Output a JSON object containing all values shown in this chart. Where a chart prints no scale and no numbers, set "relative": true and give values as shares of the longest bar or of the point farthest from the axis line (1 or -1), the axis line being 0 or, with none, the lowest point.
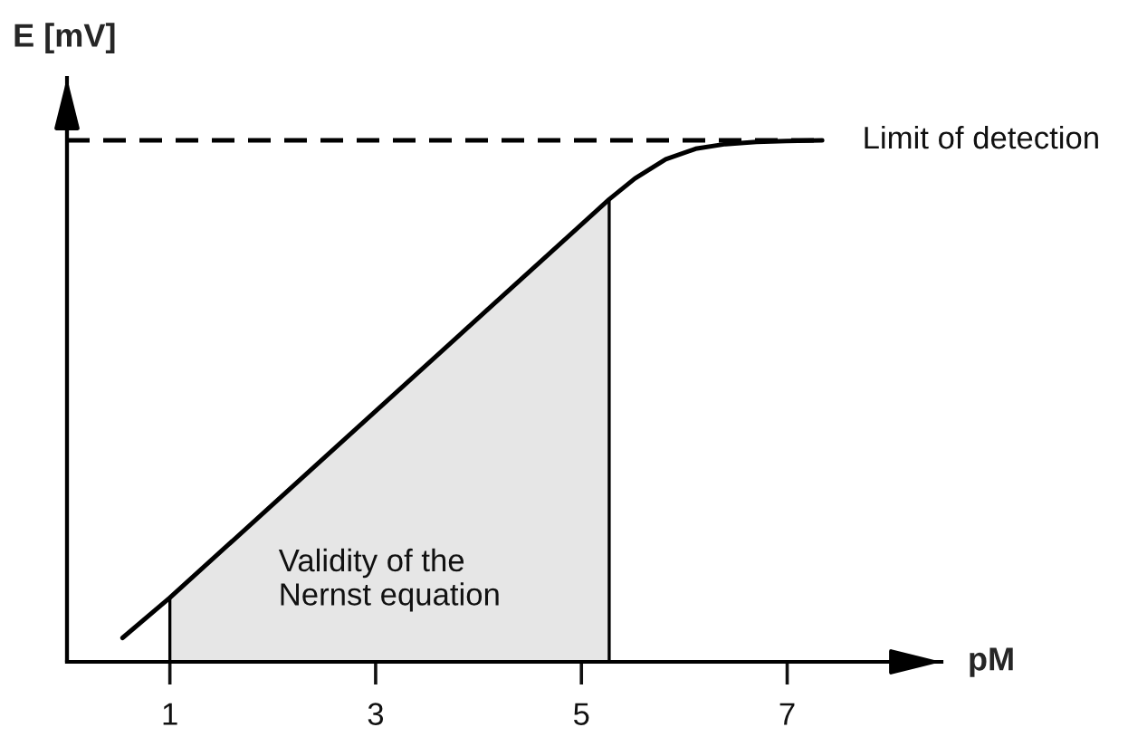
{
  "chart_data": {
    "type": "line",
    "relative": true,
    "xlabel": "pM",
    "ylabel": "E [mV]",
    "xlim": [
      0,
      8.5
    ],
    "xticks": [
      1,
      3,
      5,
      7
    ],
    "tick_labels": "x",
    "series": [
      {
        "type": "area",
        "name": "Validity of the\nNernst equation",
        "color": "#e6e6e6",
        "x": [
          1,
          5.27
        ],
        "values": [
          0.123,
          0.887
        ]
      },
      {
        "color": "#000000",
        "x": [
          0.54,
          1,
          5.27,
          5.52,
          5.82,
          6.11,
          6.4,
          6.7,
          6.99,
          7.34
        ],
        "values": [
          0.046,
          0.123,
          0.887,
          0.927,
          0.964,
          0.984,
          0.993,
          0.997,
          0.999,
          1.0
        ]
      },
      {
        "type": "line",
        "name": "Limit of detection",
        "color": "#000000",
        "line_style": "dashed",
        "x": [
          0,
          7.34
        ],
        "values": [
          1,
          1
        ]
      }
    ]
  }
}
